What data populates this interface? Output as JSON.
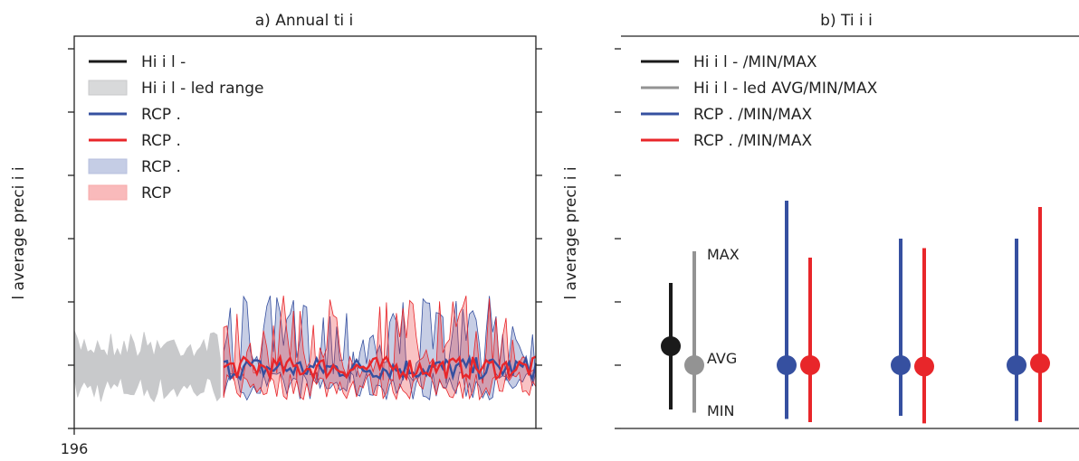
{
  "colors": {
    "historical": "#1a1a1a",
    "historical_band": "#c8c9cb",
    "modelled": "#939393",
    "rcp_blue": "#3650a0",
    "rcp_red": "#e8262a",
    "rcp_blue_band": "#b7c0de",
    "rcp_red_band": "#f7a9aa"
  },
  "chart_data": [
    {
      "type": "area",
      "title": "a) Annual ti          i",
      "ylabel": "l average preci  i   i",
      "y_tick_labels": [
        "",
        "",
        "",
        "",
        "",
        "",
        ""
      ],
      "x_tick_labels": [
        "196"
      ],
      "x_range": [
        1961,
        2100
      ],
      "ylim": [
        0,
        6.2
      ],
      "grid": false,
      "legend_position": "top-left",
      "legend": [
        {
          "label": "Hi       i    l -",
          "kind": "line",
          "color": "historical"
        },
        {
          "label": "Hi       i    l -             led range",
          "kind": "patch",
          "color": "historical_band"
        },
        {
          "label": "RCP  .",
          "kind": "line",
          "color": "rcp_blue"
        },
        {
          "label": "RCP  .",
          "kind": "line",
          "color": "rcp_red"
        },
        {
          "label": "RCP  .",
          "kind": "patch",
          "color": "rcp_blue_band"
        },
        {
          "label": "RCP",
          "kind": "patch",
          "color": "rcp_red_band"
        }
      ],
      "series": [
        {
          "name": "historical_range",
          "x_start": 1961,
          "x_end": 2005,
          "value_max": 1.55,
          "value_min": 0.4
        },
        {
          "name": "rcp_blue_range",
          "x_start": 2006,
          "x_end": 2100,
          "value_max": 2.1,
          "value_min": 0.45
        },
        {
          "name": "rcp_red_range",
          "x_start": 2006,
          "x_end": 2100,
          "value_max": 2.1,
          "value_min": 0.45
        },
        {
          "name": "rcp_blue_mean",
          "x_start": 2006,
          "x_end": 2100,
          "value_mean": 0.95
        },
        {
          "name": "rcp_red_mean",
          "x_start": 2006,
          "x_end": 2100,
          "value_mean": 0.96
        }
      ]
    },
    {
      "type": "scatter",
      "title": "b) Ti           i                  i",
      "ylabel": "l average preci  i   i",
      "y_tick_labels": [
        "",
        "",
        "",
        "",
        "",
        "",
        ""
      ],
      "ylim": [
        0,
        6.2
      ],
      "grid": false,
      "legend_position": "top-left",
      "legend": [
        {
          "label": "Hi       i    l -                          /MIN/MAX",
          "color": "historical"
        },
        {
          "label": "Hi       i    l -            led AVG/MIN/MAX",
          "color": "modelled"
        },
        {
          "label": "RCP  .            /MIN/MAX",
          "color": "rcp_blue"
        },
        {
          "label": "RCP  .            /MIN/MAX",
          "color": "rcp_red"
        }
      ],
      "annotations": {
        "max": "MAX",
        "avg": "AVG",
        "min": "MIN"
      },
      "points": [
        {
          "group": 0,
          "offset": -0.5,
          "color": "historical",
          "avg": 1.3,
          "min": 0.3,
          "max": 2.3
        },
        {
          "group": 0,
          "offset": 0.5,
          "color": "modelled",
          "avg": 1.0,
          "min": 0.25,
          "max": 2.8
        },
        {
          "group": 1,
          "offset": -0.5,
          "color": "rcp_blue",
          "avg": 1.0,
          "min": 0.15,
          "max": 3.6
        },
        {
          "group": 1,
          "offset": 0.5,
          "color": "rcp_red",
          "avg": 1.0,
          "min": 0.1,
          "max": 2.7
        },
        {
          "group": 2,
          "offset": -0.5,
          "color": "rcp_blue",
          "avg": 1.0,
          "min": 0.2,
          "max": 3.0
        },
        {
          "group": 2,
          "offset": 0.5,
          "color": "rcp_red",
          "avg": 0.98,
          "min": 0.08,
          "max": 2.85
        },
        {
          "group": 3,
          "offset": -0.5,
          "color": "rcp_blue",
          "avg": 1.0,
          "min": 0.12,
          "max": 3.0
        },
        {
          "group": 3,
          "offset": 0.5,
          "color": "rcp_red",
          "avg": 1.03,
          "min": 0.1,
          "max": 3.5
        }
      ]
    }
  ]
}
